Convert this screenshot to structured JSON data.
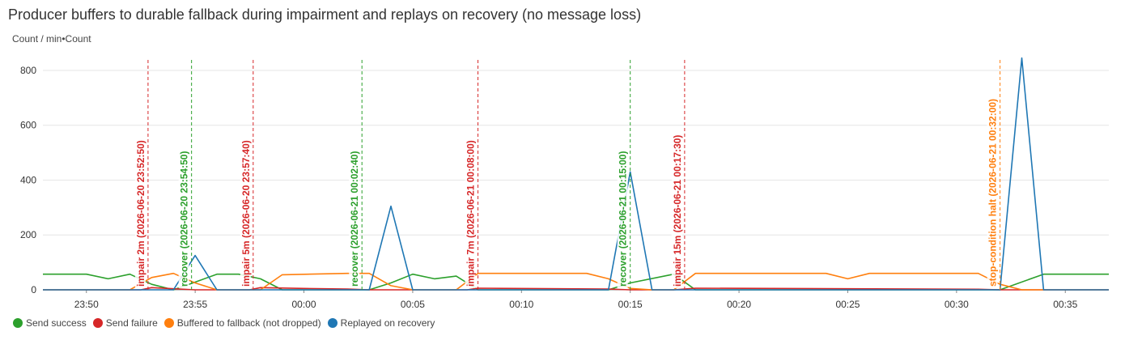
{
  "title": "Producer buffers to durable fallback during impairment and replays on recovery (no message loss)",
  "units_label": "Count / min•Count",
  "chart_data": {
    "type": "line",
    "title": "Producer buffers to durable fallback during impairment and replays on recovery (no message loss)",
    "ylabel": "Count / min•Count",
    "xlabel": "",
    "x_ticks": [
      "23:50",
      "23:55",
      "00:00",
      "00:05",
      "00:10",
      "00:15",
      "00:20",
      "00:25",
      "00:30",
      "00:35"
    ],
    "x_tick_times": [
      "2026-06-20 23:50",
      "2026-06-20 23:55",
      "2026-06-21 00:00",
      "2026-06-21 00:05",
      "2026-06-21 00:10",
      "2026-06-21 00:15",
      "2026-06-21 00:20",
      "2026-06-21 00:25",
      "2026-06-21 00:30",
      "2026-06-21 00:35"
    ],
    "xlim": [
      "2026-06-20 23:48:00",
      "2026-06-21 00:37:00"
    ],
    "y_ticks": [
      0,
      200,
      400,
      600,
      800
    ],
    "ylim": [
      0,
      850
    ],
    "grid": true,
    "legend_position": "bottom-left",
    "series": [
      {
        "name": "Send success",
        "color": "#2ca02c",
        "points": [
          [
            "2026-06-20 23:48:00",
            57
          ],
          [
            "2026-06-20 23:50:00",
            57
          ],
          [
            "2026-06-20 23:51:00",
            40
          ],
          [
            "2026-06-20 23:52:00",
            57
          ],
          [
            "2026-06-20 23:53:00",
            20
          ],
          [
            "2026-06-20 23:54:00",
            0
          ],
          [
            "2026-06-20 23:55:00",
            28
          ],
          [
            "2026-06-20 23:56:00",
            57
          ],
          [
            "2026-06-20 23:57:00",
            57
          ],
          [
            "2026-06-20 23:58:00",
            40
          ],
          [
            "2026-06-20 23:59:00",
            0
          ],
          [
            "2026-06-21 00:03:00",
            0
          ],
          [
            "2026-06-21 00:04:00",
            25
          ],
          [
            "2026-06-21 00:05:00",
            57
          ],
          [
            "2026-06-21 00:06:00",
            40
          ],
          [
            "2026-06-21 00:07:00",
            50
          ],
          [
            "2026-06-21 00:08:00",
            0
          ],
          [
            "2026-06-21 00:14:00",
            0
          ],
          [
            "2026-06-21 00:15:00",
            25
          ],
          [
            "2026-06-21 00:17:00",
            57
          ],
          [
            "2026-06-21 00:18:00",
            0
          ],
          [
            "2026-06-21 00:32:00",
            0
          ],
          [
            "2026-06-21 00:34:00",
            57
          ],
          [
            "2026-06-21 00:37:00",
            57
          ]
        ]
      },
      {
        "name": "Send failure",
        "color": "#d62728",
        "points": [
          [
            "2026-06-20 23:48:00",
            0
          ],
          [
            "2026-06-20 23:52:30",
            0
          ],
          [
            "2026-06-20 23:53:00",
            8
          ],
          [
            "2026-06-20 23:55:00",
            0
          ],
          [
            "2026-06-20 23:57:30",
            0
          ],
          [
            "2026-06-20 23:58:00",
            8
          ],
          [
            "2026-06-21 00:00:00",
            5
          ],
          [
            "2026-06-21 00:02:00",
            3
          ],
          [
            "2026-06-21 00:03:00",
            0
          ],
          [
            "2026-06-21 00:07:30",
            0
          ],
          [
            "2026-06-21 00:08:00",
            6
          ],
          [
            "2026-06-21 00:14:00",
            3
          ],
          [
            "2026-06-21 00:15:00",
            0
          ],
          [
            "2026-06-21 00:17:00",
            0
          ],
          [
            "2026-06-21 00:18:00",
            6
          ],
          [
            "2026-06-21 00:31:00",
            2
          ],
          [
            "2026-06-21 00:32:00",
            0
          ],
          [
            "2026-06-21 00:37:00",
            0
          ]
        ]
      },
      {
        "name": "Buffered to fallback (not dropped)",
        "color": "#ff7f0e",
        "points": [
          [
            "2026-06-20 23:48:00",
            0
          ],
          [
            "2026-06-20 23:52:00",
            0
          ],
          [
            "2026-06-20 23:53:00",
            45
          ],
          [
            "2026-06-20 23:54:00",
            60
          ],
          [
            "2026-06-20 23:55:00",
            25
          ],
          [
            "2026-06-20 23:56:00",
            0
          ],
          [
            "2026-06-20 23:58:00",
            0
          ],
          [
            "2026-06-20 23:59:00",
            55
          ],
          [
            "2026-06-21 00:02:00",
            60
          ],
          [
            "2026-06-21 00:03:00",
            60
          ],
          [
            "2026-06-21 00:04:00",
            15
          ],
          [
            "2026-06-21 00:05:00",
            0
          ],
          [
            "2026-06-21 00:07:00",
            0
          ],
          [
            "2026-06-21 00:08:00",
            60
          ],
          [
            "2026-06-21 00:13:00",
            60
          ],
          [
            "2026-06-21 00:14:00",
            40
          ],
          [
            "2026-06-21 00:15:00",
            5
          ],
          [
            "2026-06-21 00:16:00",
            0
          ],
          [
            "2026-06-21 00:17:00",
            0
          ],
          [
            "2026-06-21 00:18:00",
            60
          ],
          [
            "2026-06-21 00:24:00",
            60
          ],
          [
            "2026-06-21 00:25:00",
            40
          ],
          [
            "2026-06-21 00:26:00",
            60
          ],
          [
            "2026-06-21 00:31:00",
            60
          ],
          [
            "2026-06-21 00:32:00",
            20
          ],
          [
            "2026-06-21 00:33:00",
            0
          ],
          [
            "2026-06-21 00:37:00",
            0
          ]
        ]
      },
      {
        "name": "Replayed on recovery",
        "color": "#1f77b4",
        "points": [
          [
            "2026-06-20 23:48:00",
            0
          ],
          [
            "2026-06-20 23:54:00",
            0
          ],
          [
            "2026-06-20 23:55:00",
            125
          ],
          [
            "2026-06-20 23:56:00",
            0
          ],
          [
            "2026-06-21 00:03:00",
            0
          ],
          [
            "2026-06-21 00:04:00",
            305
          ],
          [
            "2026-06-21 00:05:00",
            0
          ],
          [
            "2026-06-21 00:14:00",
            0
          ],
          [
            "2026-06-21 00:15:00",
            430
          ],
          [
            "2026-06-21 00:16:00",
            0
          ],
          [
            "2026-06-21 00:32:00",
            0
          ],
          [
            "2026-06-21 00:33:00",
            845
          ],
          [
            "2026-06-21 00:34:00",
            0
          ],
          [
            "2026-06-21 00:37:00",
            0
          ]
        ]
      }
    ],
    "annotations": [
      {
        "label": "impair 2m (2026-06-20 23:52:50)",
        "time": "2026-06-20 23:52:50",
        "color": "#d62728"
      },
      {
        "label": "recover (2026-06-20 23:54:50)",
        "time": "2026-06-20 23:54:50",
        "color": "#2ca02c"
      },
      {
        "label": "impair 5m (2026-06-20 23:57:40)",
        "time": "2026-06-20 23:57:40",
        "color": "#d62728"
      },
      {
        "label": "recover (2026-06-21 00:02:40)",
        "time": "2026-06-21 00:02:40",
        "color": "#2ca02c"
      },
      {
        "label": "impair 7m (2026-06-21 00:08:00)",
        "time": "2026-06-21 00:08:00",
        "color": "#d62728"
      },
      {
        "label": "recover (2026-06-21 00:15:00)",
        "time": "2026-06-21 00:15:00",
        "color": "#2ca02c"
      },
      {
        "label": "impair 15m (2026-06-21 00:17:30)",
        "time": "2026-06-21 00:17:30",
        "color": "#d62728"
      },
      {
        "label": "stop-condition halt (2026-06-21 00:32:00)",
        "time": "2026-06-21 00:32:00",
        "color": "#ff7f0e"
      }
    ]
  }
}
